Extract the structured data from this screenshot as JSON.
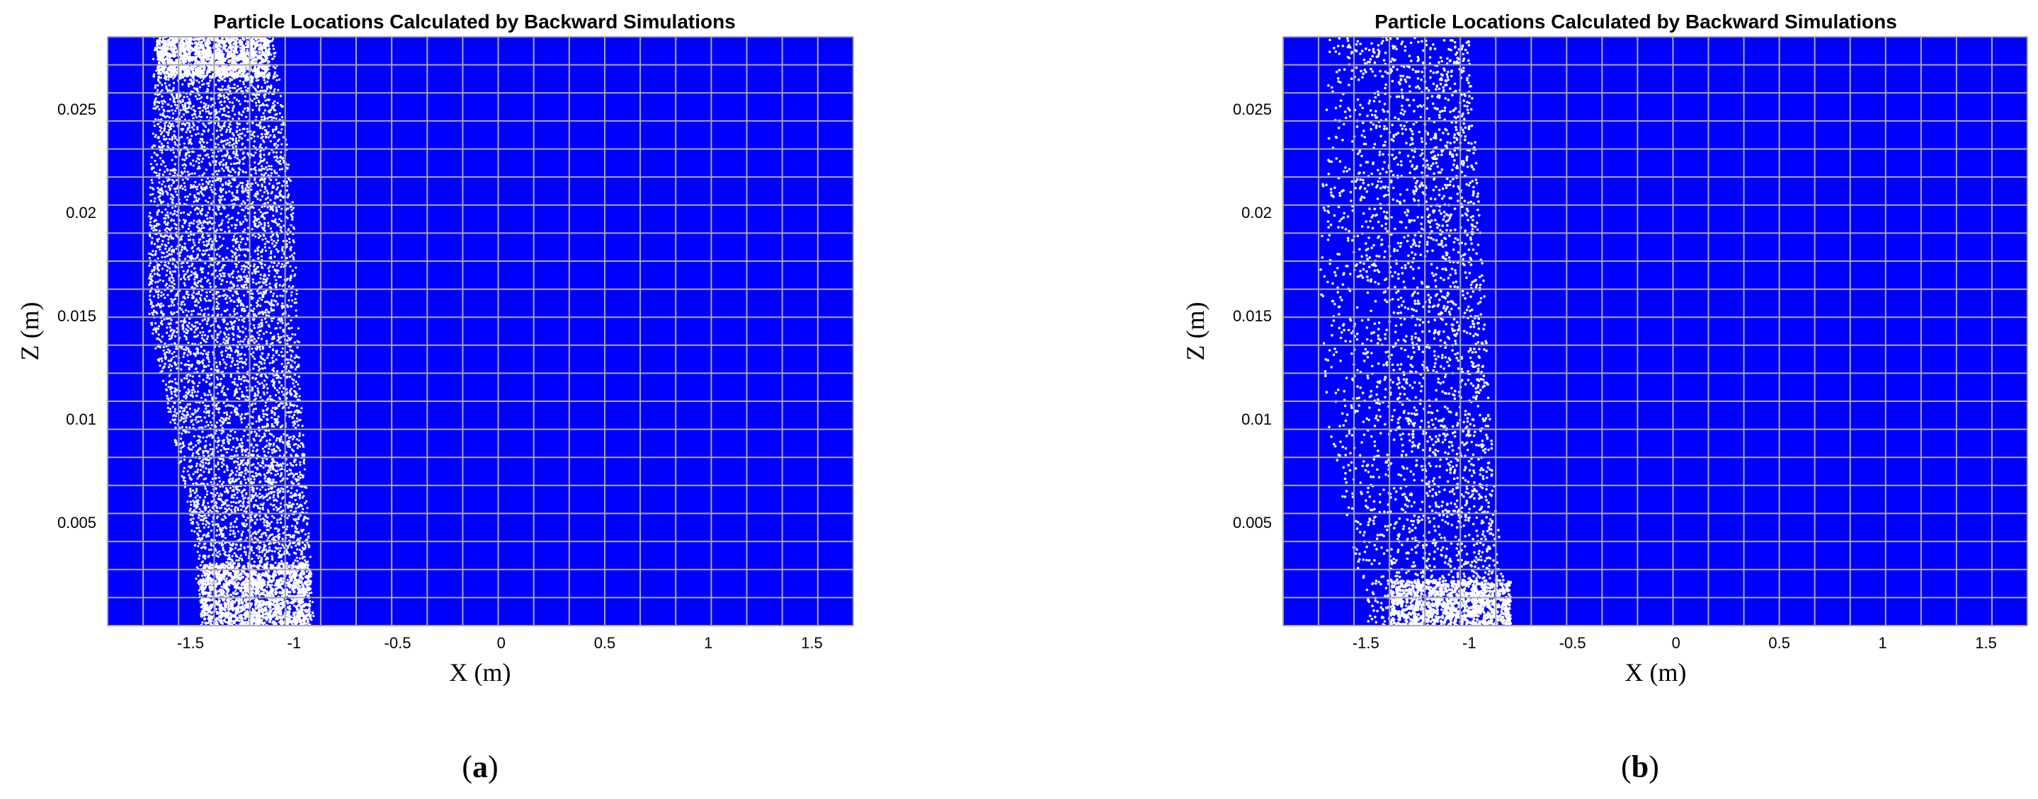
{
  "chart_data": [
    {
      "type": "scatter",
      "title": "Particle Locations Calculated by Backward Simulations",
      "xlabel": "X (m)",
      "ylabel": "Z (m)",
      "xlim": [
        -1.9,
        1.7
      ],
      "ylim": [
        0.0,
        0.0285
      ],
      "xticks": [
        "-1.5",
        "-1",
        "-0.5",
        "0",
        "0.5",
        "1",
        "1.5"
      ],
      "yticks": [
        "0.005",
        "0.01",
        "0.015",
        "0.02",
        "0.025"
      ],
      "grid": true,
      "background_color": "#0000ff",
      "grid_color": "#a8a8a8",
      "marker_color": "#ffffff",
      "panel_label": "a",
      "particle_band": [
        {
          "z": 0.0285,
          "x_min": -1.68,
          "x_max": -1.1
        },
        {
          "z": 0.025,
          "x_min": -1.68,
          "x_max": -1.05
        },
        {
          "z": 0.02,
          "x_min": -1.7,
          "x_max": -1.0
        },
        {
          "z": 0.015,
          "x_min": -1.7,
          "x_max": -0.98
        },
        {
          "z": 0.01,
          "x_min": -1.6,
          "x_max": -0.96
        },
        {
          "z": 0.005,
          "x_min": -1.5,
          "x_max": -0.93
        },
        {
          "z": 0.0,
          "x_min": -1.45,
          "x_max": -0.9
        }
      ],
      "particle_count": 6500
    },
    {
      "type": "scatter",
      "title": "Particle Locations Calculated by Backward Simulations",
      "xlabel": "X (m)",
      "ylabel": "Z (m)",
      "xlim": [
        -1.9,
        1.7
      ],
      "ylim": [
        0.0,
        0.0285
      ],
      "xticks": [
        "-1.5",
        "-1",
        "-0.5",
        "0",
        "0.5",
        "1",
        "1.5"
      ],
      "yticks": [
        "0.005",
        "0.01",
        "0.015",
        "0.02",
        "0.025"
      ],
      "grid": true,
      "background_color": "#0000ff",
      "grid_color": "#a8a8a8",
      "marker_color": "#ffffff",
      "panel_label": "b",
      "particle_band": [
        {
          "z": 0.0285,
          "x_min": -1.68,
          "x_max": -1.0
        },
        {
          "z": 0.025,
          "x_min": -1.7,
          "x_max": -0.98
        },
        {
          "z": 0.02,
          "x_min": -1.72,
          "x_max": -0.95
        },
        {
          "z": 0.015,
          "x_min": -1.72,
          "x_max": -0.92
        },
        {
          "z": 0.01,
          "x_min": -1.7,
          "x_max": -0.9
        },
        {
          "z": 0.005,
          "x_min": -1.6,
          "x_max": -0.86
        },
        {
          "z": 0.0,
          "x_min": -1.5,
          "x_max": -0.8
        }
      ],
      "particle_count": 2800
    }
  ]
}
